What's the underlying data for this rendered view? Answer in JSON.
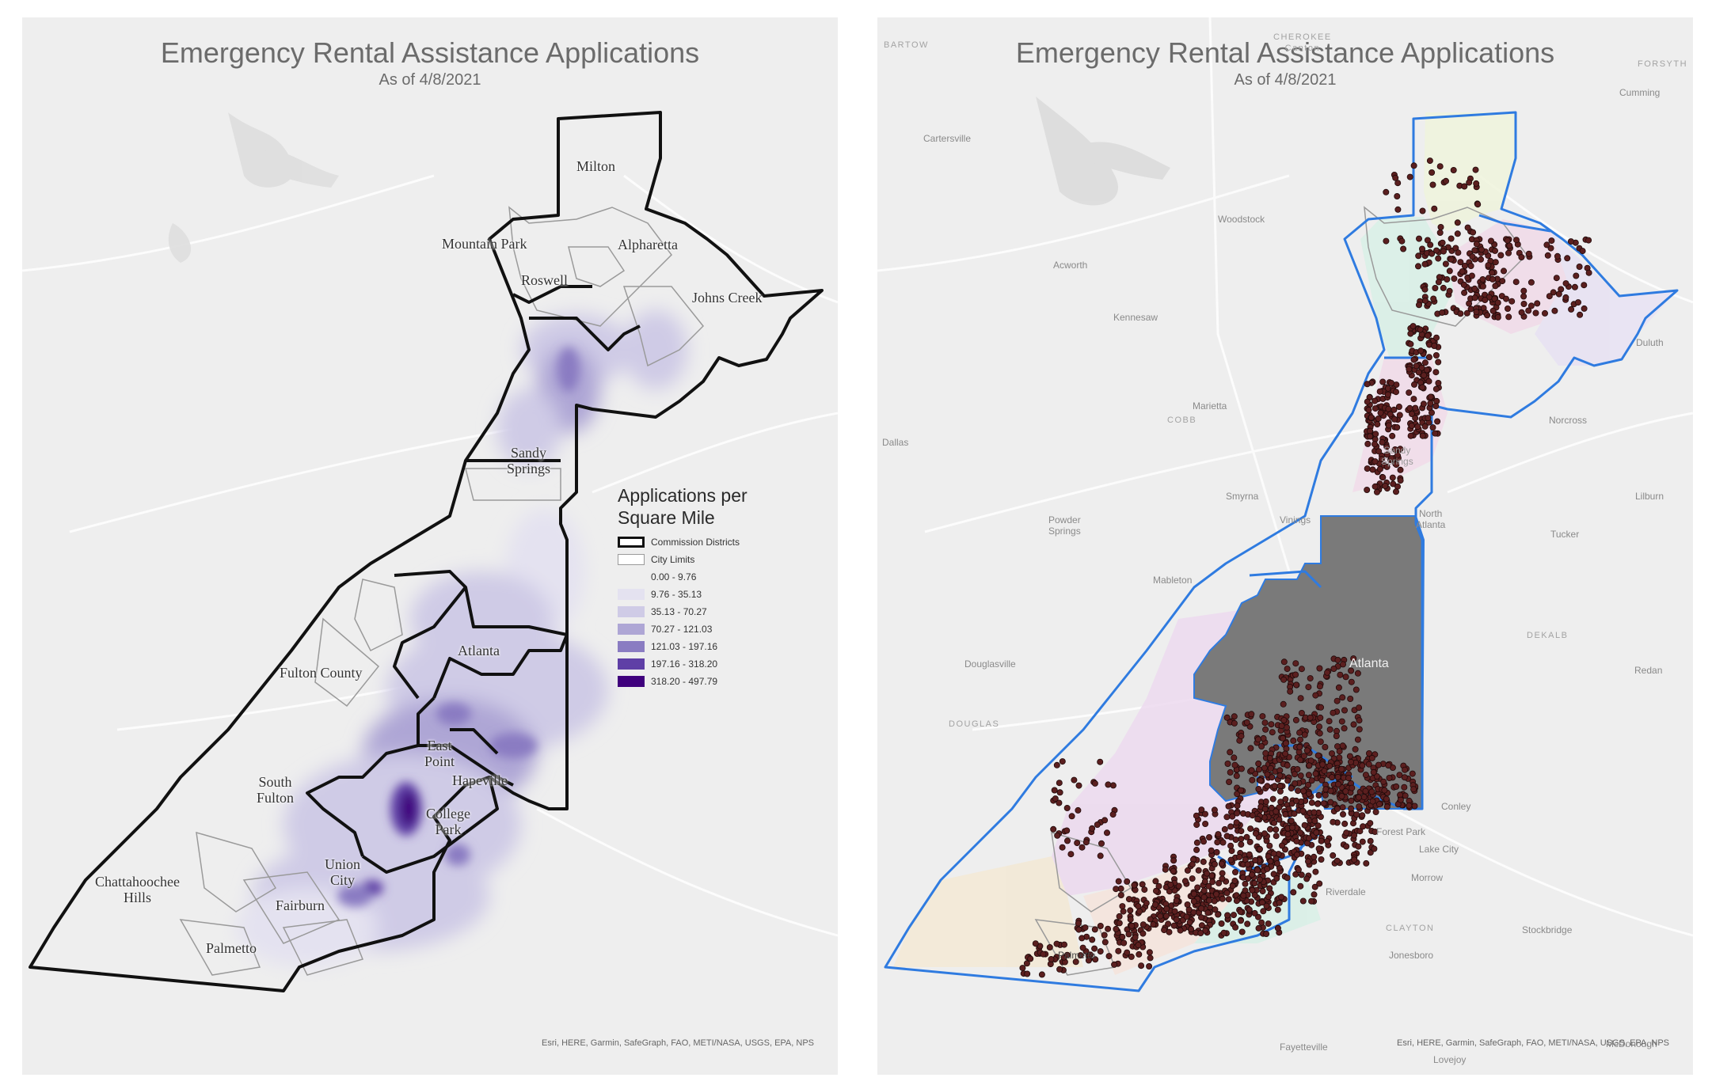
{
  "left_map": {
    "title": "Emergency Rental Assistance Applications",
    "subtitle": "As of 4/8/2021",
    "city_labels": [
      {
        "name": "Milton"
      },
      {
        "name": "Mountain Park"
      },
      {
        "name": "Alpharetta"
      },
      {
        "name": "Roswell"
      },
      {
        "name": "Johns Creek"
      },
      {
        "name": "Sandy\nSprings"
      },
      {
        "name": "Atlanta"
      },
      {
        "name": "Fulton County"
      },
      {
        "name": "East\nPoint"
      },
      {
        "name": "Hapeville"
      },
      {
        "name": "South\nFulton"
      },
      {
        "name": "College\nPark"
      },
      {
        "name": "Union\nCity"
      },
      {
        "name": "Chattahoochee\nHills"
      },
      {
        "name": "Fairburn"
      },
      {
        "name": "Palmetto"
      }
    ],
    "legend": {
      "title": "Applications per\nSquare Mile",
      "items": [
        {
          "label": "Commission Districts",
          "kind": "outline-thick",
          "color": "#111111"
        },
        {
          "label": "City Limits",
          "kind": "outline-thin",
          "color": "#9a9a9a"
        },
        {
          "label": "0.00 - 9.76",
          "kind": "fill",
          "color": "#eeeeee"
        },
        {
          "label": "9.76 - 35.13",
          "kind": "fill",
          "color": "#e4e2f0"
        },
        {
          "label": "35.13 - 70.27",
          "kind": "fill",
          "color": "#cfcbe6"
        },
        {
          "label": "70.27 - 121.03",
          "kind": "fill",
          "color": "#aea6d5"
        },
        {
          "label": "121.03 - 197.16",
          "kind": "fill",
          "color": "#8a7cc2"
        },
        {
          "label": "197.16 - 318.20",
          "kind": "fill",
          "color": "#5f3fa6"
        },
        {
          "label": "318.20 - 497.79",
          "kind": "fill",
          "color": "#3f007d"
        }
      ]
    },
    "attribution": "Esri, HERE, Garmin, SafeGraph, FAO, METI/NASA, USGS, EPA, NPS"
  },
  "right_map": {
    "title": "Emergency Rental Assistance Applications",
    "subtitle": "As of 4/8/2021",
    "place_labels": [
      {
        "name": "BARTOW",
        "caps": true
      },
      {
        "name": "CHEROKEE\nCanton",
        "caps": true
      },
      {
        "name": "FORSYTH",
        "caps": true
      },
      {
        "name": "Cumming"
      },
      {
        "name": "Cartersville"
      },
      {
        "name": "Woodstock"
      },
      {
        "name": "Acworth"
      },
      {
        "name": "Kennesaw"
      },
      {
        "name": "Duluth"
      },
      {
        "name": "Marietta"
      },
      {
        "name": "COBB",
        "caps": true
      },
      {
        "name": "Norcross"
      },
      {
        "name": "Dallas"
      },
      {
        "name": "Smyrna"
      },
      {
        "name": "Lilburn"
      },
      {
        "name": "Powder\nSprings"
      },
      {
        "name": "Vinings"
      },
      {
        "name": "North\nAtlanta"
      },
      {
        "name": "Tucker"
      },
      {
        "name": "Mableton"
      },
      {
        "name": "DEKALB",
        "caps": true
      },
      {
        "name": "Douglasville"
      },
      {
        "name": "Atlanta"
      },
      {
        "name": "Redan"
      },
      {
        "name": "DOUGLAS",
        "caps": true
      },
      {
        "name": "Conley"
      },
      {
        "name": "Forest Park"
      },
      {
        "name": "Lake City"
      },
      {
        "name": "Morrow"
      },
      {
        "name": "Riverdale"
      },
      {
        "name": "CLAYTON",
        "caps": true
      },
      {
        "name": "Stockbridge"
      },
      {
        "name": "Jonesboro"
      },
      {
        "name": "Fayetteville"
      },
      {
        "name": "McDonough"
      },
      {
        "name": "Lovejoy"
      },
      {
        "name": "Sandy\nSprings"
      },
      {
        "name": "Palmetto"
      }
    ],
    "attribution": "Esri, HERE, Garmin, SafeGraph, FAO, METI/NASA, USGS, EPA, NPS"
  },
  "colors": {
    "background": "#eeeeee",
    "boundary_left": "#111111",
    "boundary_right": "#2f7be0",
    "density_purple": "#6a51a3",
    "point_fill": "#5b1f1f",
    "atlanta_gray": "#7a7a7a"
  }
}
